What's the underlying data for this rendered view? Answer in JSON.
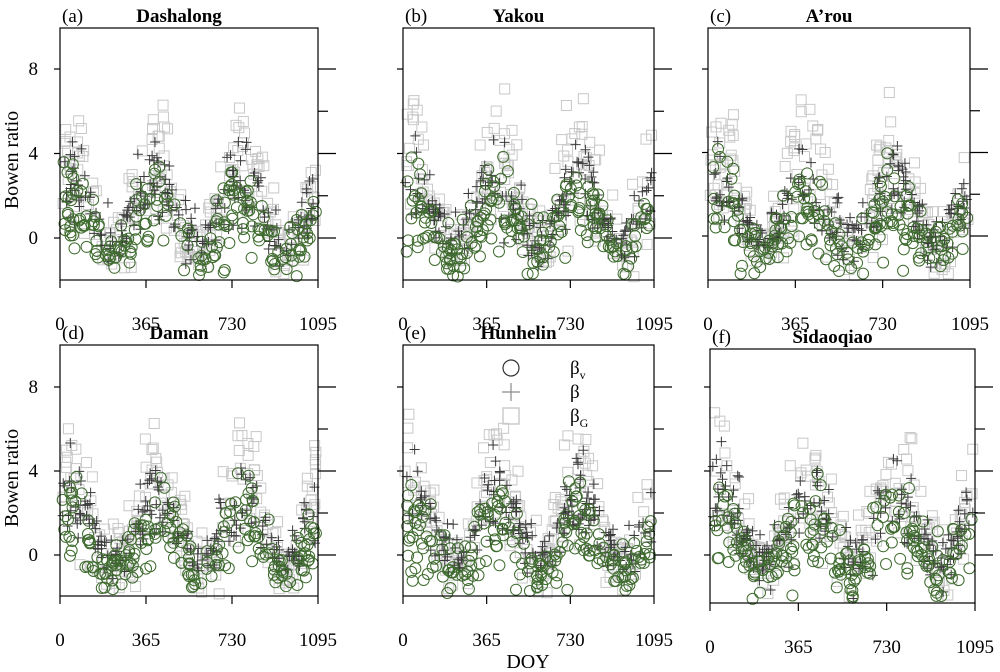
{
  "y_axis_label": "Bowen ratio",
  "x_axis_label": "DOY",
  "legend": {
    "beta_v": {
      "base": "β",
      "sub": "v"
    },
    "beta": {
      "base": "β",
      "sub": ""
    },
    "beta_g": {
      "base": "β",
      "sub": "G"
    }
  },
  "colors": {
    "beta_v": "#3e6b2e",
    "beta": "#3a3a3a",
    "beta_g": "#c8c8c8"
  },
  "chart_data": [
    {
      "type": "scatter",
      "letter": "(a)",
      "title": "Dashalong",
      "xlim": [
        0,
        1095
      ],
      "ylim": [
        -2,
        10
      ],
      "x_ticks": [
        "0",
        "365",
        "730",
        "1095"
      ],
      "y_ticks": [
        "0",
        "4",
        "8"
      ],
      "scatter_seed": 11,
      "series": [
        {
          "key": "beta_v"
        },
        {
          "key": "beta"
        },
        {
          "key": "beta_g"
        }
      ]
    },
    {
      "type": "scatter",
      "letter": "(b)",
      "title": "Yakou",
      "xlim": [
        0,
        1095
      ],
      "ylim": [
        -2,
        10
      ],
      "x_ticks": [
        "0",
        "365",
        "730",
        "1095"
      ],
      "y_ticks": [],
      "scatter_seed": 23,
      "series": [
        {
          "key": "beta_v"
        },
        {
          "key": "beta"
        },
        {
          "key": "beta_g"
        }
      ]
    },
    {
      "type": "scatter",
      "letter": "(c)",
      "title": "A’rou",
      "xlim": [
        0,
        1095
      ],
      "ylim": [
        -2,
        10
      ],
      "x_ticks": [
        "0",
        "365",
        "730",
        "1095"
      ],
      "y_ticks": [],
      "scatter_seed": 37,
      "series": [
        {
          "key": "beta_v"
        },
        {
          "key": "beta"
        },
        {
          "key": "beta_g"
        }
      ]
    },
    {
      "type": "scatter",
      "letter": "(d)",
      "title": "Daman",
      "xlim": [
        0,
        1095
      ],
      "ylim": [
        -2,
        10
      ],
      "x_ticks": [
        "0",
        "365",
        "730",
        "1095"
      ],
      "y_ticks": [
        "0",
        "4",
        "8"
      ],
      "scatter_seed": 41,
      "series": [
        {
          "key": "beta_v"
        },
        {
          "key": "beta"
        },
        {
          "key": "beta_g"
        }
      ]
    },
    {
      "type": "scatter",
      "letter": "(e)",
      "title": "Hunhelin",
      "xlim": [
        0,
        1095
      ],
      "ylim": [
        -2,
        10
      ],
      "x_ticks": [
        "0",
        "365",
        "730",
        "1095"
      ],
      "y_ticks": [],
      "scatter_seed": 53,
      "series": [
        {
          "key": "beta_v"
        },
        {
          "key": "beta"
        },
        {
          "key": "beta_g"
        }
      ]
    },
    {
      "type": "scatter",
      "letter": "(f)",
      "title": "Sidaoqiao",
      "xlim": [
        0,
        1095
      ],
      "ylim": [
        -2,
        10
      ],
      "x_ticks": [
        "0",
        "365",
        "730",
        "1095"
      ],
      "y_ticks": [],
      "scatter_seed": 67,
      "series": [
        {
          "key": "beta_v"
        },
        {
          "key": "beta"
        },
        {
          "key": "beta_g"
        }
      ]
    }
  ]
}
